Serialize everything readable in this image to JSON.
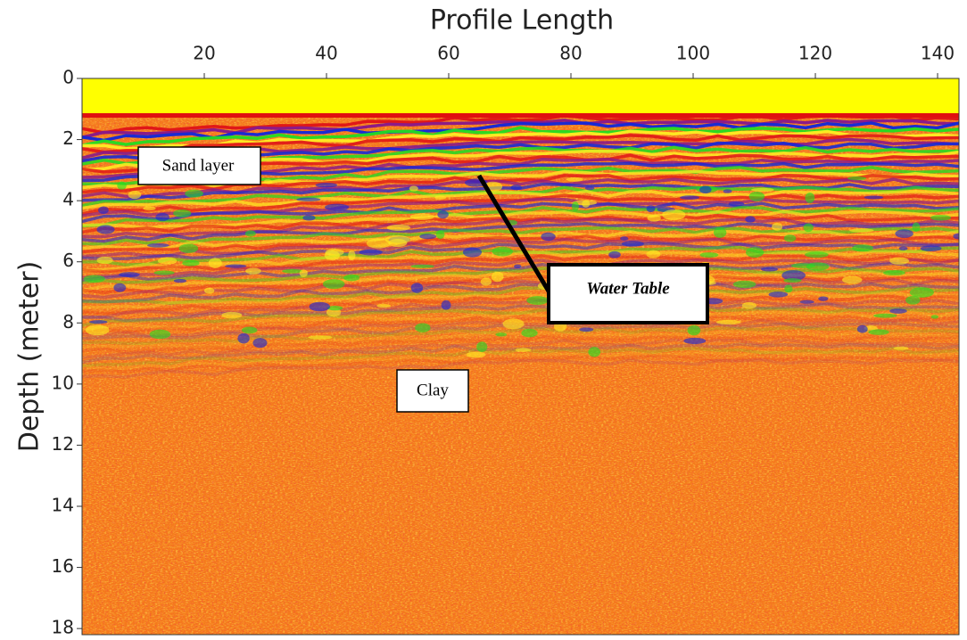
{
  "chart_data": {
    "type": "radargram",
    "title": "Profile Length",
    "y_label": "Depth (meter)",
    "xlim": [
      0,
      143.5
    ],
    "ylim": [
      0,
      18.2
    ],
    "xticks": [
      20,
      40,
      60,
      80,
      100,
      120,
      140
    ],
    "yticks": [
      0,
      2,
      4,
      6,
      8,
      10,
      12,
      14,
      16,
      18
    ],
    "y_inverted": true,
    "annotations": [
      "Sand layer",
      "Water Table",
      "Clay"
    ]
  }
}
